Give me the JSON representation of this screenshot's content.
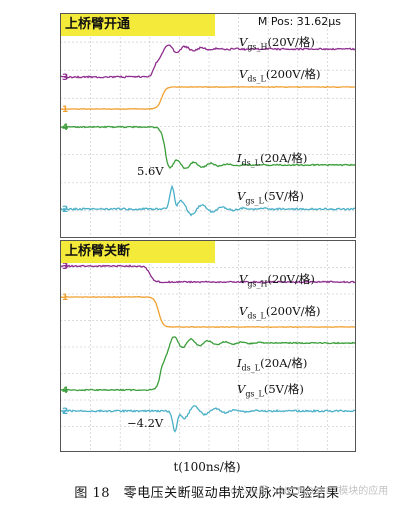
{
  "figure": {
    "caption": "图 18　零电压关断驱动串扰双脉冲实验结果",
    "xlabel": "t(100ns/格)",
    "watermark": "⊙公众号 · SiC MOSFET模块的应用"
  },
  "chart_data": [
    {
      "type": "line",
      "title": "上桥臂开通",
      "readout": "M Pos: 31.62μs",
      "x_unit": "100ns/格",
      "annotation": "5.6V",
      "series": [
        {
          "name": "V_gs_H (20V/格)",
          "channel": "3",
          "color": "#8e2c8e",
          "level_before": 0,
          "level_after": 20,
          "event_div": 3.2
        },
        {
          "name": "V_ds_L (200V/格)",
          "channel": "1",
          "color": "#f0a030",
          "level_before": 0,
          "level_after": 200,
          "event_div": 3.4
        },
        {
          "name": "I_ds_L (20A/格)",
          "channel": "4",
          "color": "#3a9e3a",
          "level_before": 0,
          "level_after": -40,
          "event_div": 3.5
        },
        {
          "name": "V_gs_L (5V/格)",
          "channel": "2",
          "color": "#4ab0c8",
          "level_before": 0,
          "level_after": 0,
          "peak": 5.6,
          "event_div": 3.6
        }
      ]
    },
    {
      "type": "line",
      "title": "上桥臂关断",
      "x_unit": "100ns/格",
      "annotation": "−4.2V",
      "series": [
        {
          "name": "V_gs_H (20V/格)",
          "channel": "3",
          "color": "#8e2c8e",
          "level_before": 20,
          "level_after": 0,
          "event_div": 3.0
        },
        {
          "name": "V_ds_L (200V/格)",
          "channel": "1",
          "color": "#f0a030",
          "level_before": 200,
          "level_after": 0,
          "event_div": 3.3
        },
        {
          "name": "I_ds_L (20A/格)",
          "channel": "4",
          "color": "#3a9e3a",
          "level_before": 0,
          "level_after": 40,
          "event_div": 3.4
        },
        {
          "name": "V_gs_L (5V/格)",
          "channel": "2",
          "color": "#4ab0c8",
          "level_before": 0,
          "level_after": 0,
          "peak": -4.2,
          "event_div": 3.7
        }
      ]
    }
  ],
  "labels": {
    "top": {
      "vgs_h": {
        "sym": "V",
        "sub": "gs_H",
        "scale": "(20V/格)"
      },
      "vds_l": {
        "sym": "V",
        "sub": "ds_L",
        "scale": "(200V/格)"
      },
      "ids_l": {
        "sym": "I",
        "sub": "ds_L",
        "scale": "(20A/格)"
      },
      "vgs_l": {
        "sym": "V",
        "sub": "gs_L",
        "scale": "(5V/格)"
      }
    },
    "bottom": {
      "vgs_h": {
        "sym": "V",
        "sub": "gs_H",
        "scale": "(20V/格)"
      },
      "vds_l": {
        "sym": "V",
        "sub": "ds_L",
        "scale": "(200V/格)"
      },
      "ids_l": {
        "sym": "I",
        "sub": "ds_L",
        "scale": "(20A/格)"
      },
      "vgs_l": {
        "sym": "V",
        "sub": "gs_L",
        "scale": "(5V/格)"
      }
    }
  }
}
